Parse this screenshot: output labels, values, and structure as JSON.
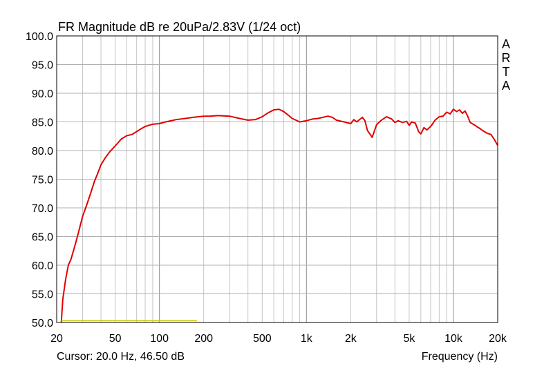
{
  "chart_data": {
    "type": "line",
    "title": "FR Magnitude dB re 20uPa/2.83V (1/24 oct)",
    "xlabel": "Frequency (Hz)",
    "ylabel": "",
    "x_scale": "log",
    "xlim": [
      20,
      20000
    ],
    "ylim": [
      50,
      100
    ],
    "grid": true,
    "x_ticks": [
      {
        "value": 20,
        "label": "20"
      },
      {
        "value": 50,
        "label": "50"
      },
      {
        "value": 100,
        "label": "100"
      },
      {
        "value": 200,
        "label": "200"
      },
      {
        "value": 500,
        "label": "500"
      },
      {
        "value": 1000,
        "label": "1k"
      },
      {
        "value": 2000,
        "label": "2k"
      },
      {
        "value": 5000,
        "label": "5k"
      },
      {
        "value": 10000,
        "label": "10k"
      },
      {
        "value": 20000,
        "label": "20k"
      }
    ],
    "y_ticks": [
      {
        "value": 100,
        "label": "100.0"
      },
      {
        "value": 95,
        "label": "95.0"
      },
      {
        "value": 90,
        "label": "90.0"
      },
      {
        "value": 85,
        "label": "85.0"
      },
      {
        "value": 80,
        "label": "80.0"
      },
      {
        "value": 75,
        "label": "75.0"
      },
      {
        "value": 70,
        "label": "70.0"
      },
      {
        "value": 65,
        "label": "65.0"
      },
      {
        "value": 60,
        "label": "60.0"
      },
      {
        "value": 55,
        "label": "55.0"
      },
      {
        "value": 50,
        "label": "50.0"
      }
    ],
    "cursor_text": "Cursor: 20.0 Hz, 46.50 dB",
    "watermark": [
      "A",
      "R",
      "T",
      "A"
    ],
    "series": [
      {
        "color": "#e00000",
        "x": [
          21.5,
          22,
          23,
          24,
          25,
          26,
          27,
          28,
          30,
          32,
          34,
          36,
          38,
          40,
          43,
          46,
          50,
          55,
          60,
          65,
          70,
          75,
          80,
          90,
          100,
          110,
          120,
          130,
          150,
          170,
          200,
          220,
          250,
          300,
          350,
          400,
          450,
          500,
          550,
          600,
          650,
          700,
          750,
          800,
          900,
          1000,
          1100,
          1200,
          1400,
          1500,
          1600,
          1800,
          2000,
          2100,
          2200,
          2400,
          2500,
          2600,
          2800,
          3000,
          3200,
          3500,
          3800,
          4000,
          4200,
          4500,
          4800,
          5000,
          5200,
          5500,
          5800,
          6000,
          6300,
          6600,
          7000,
          7500,
          8000,
          8500,
          9000,
          9500,
          10000,
          10500,
          11000,
          11500,
          12000,
          12500,
          13000,
          14000,
          15000,
          16000,
          17000,
          18000,
          19000,
          20000
        ],
        "y": [
          50.0,
          54.0,
          57.5,
          60.0,
          61.0,
          62.5,
          64.0,
          65.5,
          68.5,
          70.5,
          72.5,
          74.5,
          76.0,
          77.5,
          78.8,
          79.8,
          80.8,
          82.0,
          82.6,
          82.8,
          83.3,
          83.8,
          84.2,
          84.6,
          84.7,
          85.0,
          85.2,
          85.4,
          85.6,
          85.8,
          86.0,
          86.0,
          86.1,
          86.0,
          85.6,
          85.3,
          85.4,
          85.9,
          86.6,
          87.1,
          87.2,
          86.8,
          86.2,
          85.6,
          85.0,
          85.2,
          85.5,
          85.6,
          86.0,
          85.8,
          85.3,
          85.0,
          84.7,
          85.4,
          85.0,
          85.8,
          85.2,
          83.5,
          82.3,
          84.5,
          85.2,
          85.9,
          85.5,
          84.9,
          85.2,
          84.9,
          85.1,
          84.4,
          85.0,
          84.8,
          83.3,
          82.9,
          84.0,
          83.6,
          84.2,
          85.3,
          85.9,
          86.0,
          86.7,
          86.4,
          87.2,
          86.8,
          87.1,
          86.5,
          86.9,
          86.0,
          84.9,
          84.4,
          83.9,
          83.4,
          83.0,
          82.8,
          81.9,
          80.9
        ]
      },
      {
        "color": "#c8c800",
        "x": [
          21.5,
          180
        ],
        "y": [
          50.3,
          50.3
        ]
      }
    ]
  }
}
